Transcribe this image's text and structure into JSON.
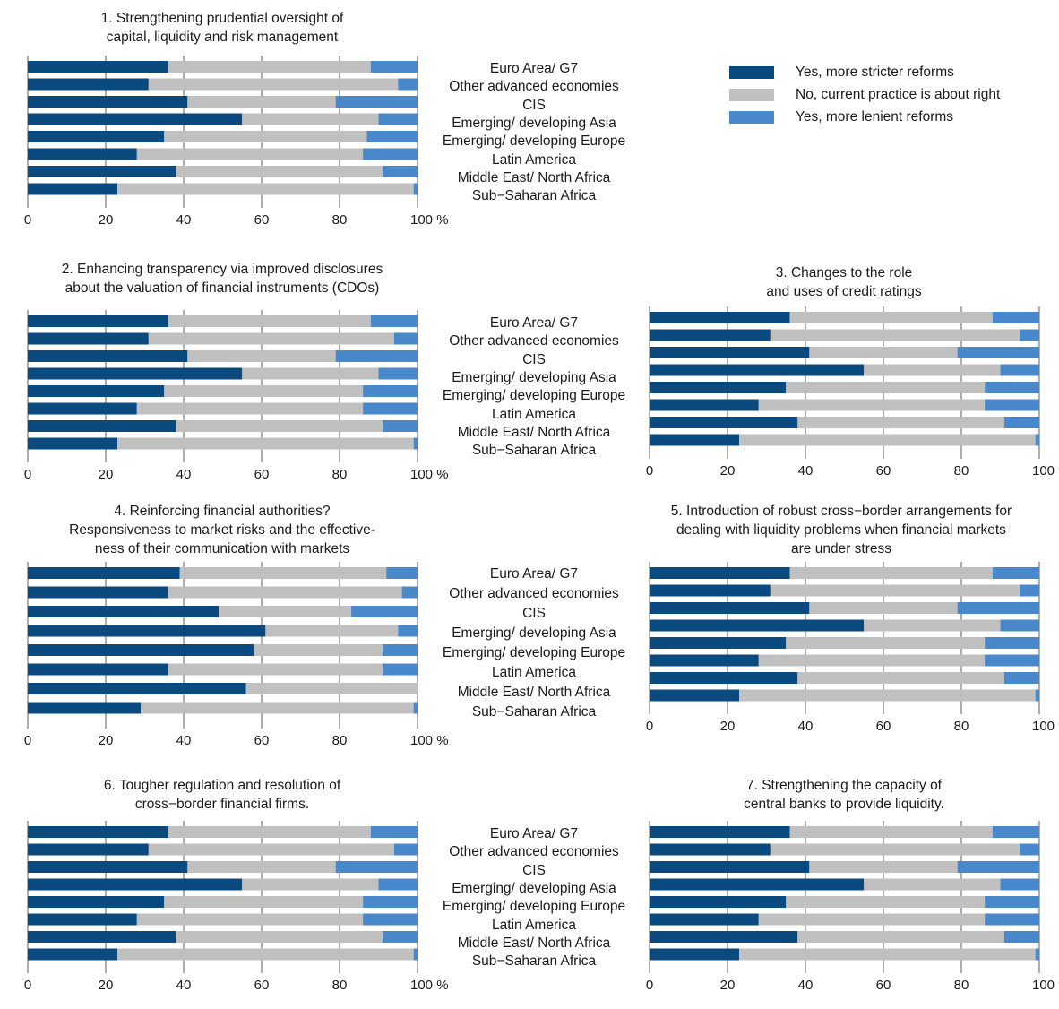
{
  "colors": {
    "stricter": "#0a4a7e",
    "about_right": "#c0c0c0",
    "lenient": "#4a88cc"
  },
  "legend": [
    {
      "label": "Yes, more stricter reforms",
      "color": "#0a4a7e"
    },
    {
      "label": "No, current practice is about right",
      "color": "#c0c0c0"
    },
    {
      "label": "Yes, more lenient reforms",
      "color": "#4a88cc"
    }
  ],
  "categories": [
    "Euro Area/ G7",
    "Other advanced economies",
    "CIS",
    "Emerging/ developing Asia",
    "Emerging/ developing Europe",
    "Latin America",
    "Middle East/ North Africa",
    "Sub−Saharan Africa"
  ],
  "axis": {
    "ticks": [
      "0",
      "20",
      "40",
      "60",
      "80"
    ],
    "last_tick": "100 %"
  },
  "chart_data": [
    {
      "type": "bar",
      "orientation": "horizontal",
      "stacked": true,
      "title": [
        "1. Strengthening prudential oversight of",
        "capital, liquidity and risk management"
      ],
      "categories": [
        "Euro Area/ G7",
        "Other advanced economies",
        "CIS",
        "Emerging/ developing Asia",
        "Emerging/ developing Europe",
        "Latin America",
        "Middle East/ North Africa",
        "Sub−Saharan Africa"
      ],
      "series": [
        {
          "name": "Yes, more stricter reforms",
          "values": [
            36,
            31,
            41,
            55,
            35,
            28,
            38,
            23
          ]
        },
        {
          "name": "No, current practice is about right",
          "values": [
            52,
            64,
            38,
            35,
            52,
            58,
            53,
            76
          ]
        },
        {
          "name": "Yes, more lenient reforms",
          "values": [
            12,
            5,
            21,
            10,
            13,
            14,
            9,
            1
          ]
        }
      ],
      "xlim": [
        0,
        100
      ],
      "grid": true
    },
    {
      "type": "bar",
      "orientation": "horizontal",
      "stacked": true,
      "title": [
        "2. Enhancing transparency via improved disclosures",
        "about the valuation of financial instruments (CDOs)"
      ],
      "categories": [
        "Euro Area/ G7",
        "Other advanced economies",
        "CIS",
        "Emerging/ developing Asia",
        "Emerging/ developing Europe",
        "Latin America",
        "Middle East/ North Africa",
        "Sub−Saharan Africa"
      ],
      "series": [
        {
          "name": "Yes, more stricter reforms",
          "values": [
            36,
            31,
            41,
            55,
            35,
            28,
            38,
            23
          ]
        },
        {
          "name": "No, current practice is about right",
          "values": [
            52,
            63,
            38,
            35,
            51,
            58,
            53,
            76
          ]
        },
        {
          "name": "Yes, more lenient reforms",
          "values": [
            12,
            6,
            21,
            10,
            14,
            14,
            9,
            1
          ]
        }
      ],
      "xlim": [
        0,
        100
      ],
      "grid": true
    },
    {
      "type": "bar",
      "orientation": "horizontal",
      "stacked": true,
      "title": [
        "3. Changes to the role",
        "and uses of credit ratings"
      ],
      "categories": [
        "Euro Area/ G7",
        "Other advanced economies",
        "CIS",
        "Emerging/ developing Asia",
        "Emerging/ developing Europe",
        "Latin America",
        "Middle East/ North Africa",
        "Sub−Saharan Africa"
      ],
      "series": [
        {
          "name": "Yes, more stricter reforms",
          "values": [
            36,
            31,
            41,
            55,
            35,
            28,
            38,
            23
          ]
        },
        {
          "name": "No, current practice is about right",
          "values": [
            52,
            64,
            38,
            35,
            51,
            58,
            53,
            76
          ]
        },
        {
          "name": "Yes, more lenient reforms",
          "values": [
            12,
            5,
            21,
            10,
            14,
            14,
            9,
            1
          ]
        }
      ],
      "xlim": [
        0,
        100
      ],
      "grid": true
    },
    {
      "type": "bar",
      "orientation": "horizontal",
      "stacked": true,
      "title": [
        "4. Reinforcing financial authorities?",
        "Responsiveness to market risks and the effective-",
        "ness of their communication with markets"
      ],
      "categories": [
        "Euro Area/ G7",
        "Other advanced economies",
        "CIS",
        "Emerging/ developing Asia",
        "Emerging/ developing Europe",
        "Latin America",
        "Middle East/ North Africa",
        "Sub−Saharan Africa"
      ],
      "series": [
        {
          "name": "Yes, more stricter reforms",
          "values": [
            39,
            36,
            49,
            61,
            58,
            36,
            56,
            29
          ]
        },
        {
          "name": "No, current practice is about right",
          "values": [
            53,
            60,
            34,
            34,
            33,
            55,
            44,
            70
          ]
        },
        {
          "name": "Yes, more lenient reforms",
          "values": [
            8,
            4,
            17,
            5,
            9,
            9,
            0,
            1
          ]
        }
      ],
      "xlim": [
        0,
        100
      ],
      "grid": true
    },
    {
      "type": "bar",
      "orientation": "horizontal",
      "stacked": true,
      "title": [
        "5. Introduction of robust cross−border arrangements for",
        "dealing with liquidity problems when financial markets",
        "are under stress"
      ],
      "categories": [
        "Euro Area/ G7",
        "Other advanced economies",
        "CIS",
        "Emerging/ developing Asia",
        "Emerging/ developing Europe",
        "Latin America",
        "Middle East/ North Africa",
        "Sub−Saharan Africa"
      ],
      "series": [
        {
          "name": "Yes, more stricter reforms",
          "values": [
            36,
            31,
            41,
            55,
            35,
            28,
            38,
            23
          ]
        },
        {
          "name": "No, current practice is about right",
          "values": [
            52,
            64,
            38,
            35,
            51,
            58,
            53,
            76
          ]
        },
        {
          "name": "Yes, more lenient reforms",
          "values": [
            12,
            5,
            21,
            10,
            14,
            14,
            9,
            1
          ]
        }
      ],
      "xlim": [
        0,
        100
      ],
      "grid": true
    },
    {
      "type": "bar",
      "orientation": "horizontal",
      "stacked": true,
      "title": [
        "6. Tougher regulation and resolution of",
        "cross−border financial firms."
      ],
      "categories": [
        "Euro Area/ G7",
        "Other advanced economies",
        "CIS",
        "Emerging/ developing Asia",
        "Emerging/ developing Europe",
        "Latin America",
        "Middle East/ North Africa",
        "Sub−Saharan Africa"
      ],
      "series": [
        {
          "name": "Yes, more stricter reforms",
          "values": [
            36,
            31,
            41,
            55,
            35,
            28,
            38,
            23
          ]
        },
        {
          "name": "No, current practice is about right",
          "values": [
            52,
            63,
            38,
            35,
            51,
            58,
            53,
            76
          ]
        },
        {
          "name": "Yes, more lenient reforms",
          "values": [
            12,
            6,
            21,
            10,
            14,
            14,
            9,
            1
          ]
        }
      ],
      "xlim": [
        0,
        100
      ],
      "grid": true
    },
    {
      "type": "bar",
      "orientation": "horizontal",
      "stacked": true,
      "title": [
        "7. Strengthening the capacity of",
        "central banks to provide liquidity."
      ],
      "categories": [
        "Euro Area/ G7",
        "Other advanced economies",
        "CIS",
        "Emerging/ developing Asia",
        "Emerging/ developing Europe",
        "Latin America",
        "Middle East/ North Africa",
        "Sub−Saharan Africa"
      ],
      "series": [
        {
          "name": "Yes, more stricter reforms",
          "values": [
            36,
            31,
            41,
            55,
            35,
            28,
            38,
            23
          ]
        },
        {
          "name": "No, current practice is about right",
          "values": [
            52,
            64,
            38,
            35,
            51,
            58,
            53,
            76
          ]
        },
        {
          "name": "Yes, more lenient reforms",
          "values": [
            12,
            5,
            21,
            10,
            14,
            14,
            9,
            1
          ]
        }
      ],
      "xlim": [
        0,
        100
      ],
      "grid": true
    }
  ]
}
